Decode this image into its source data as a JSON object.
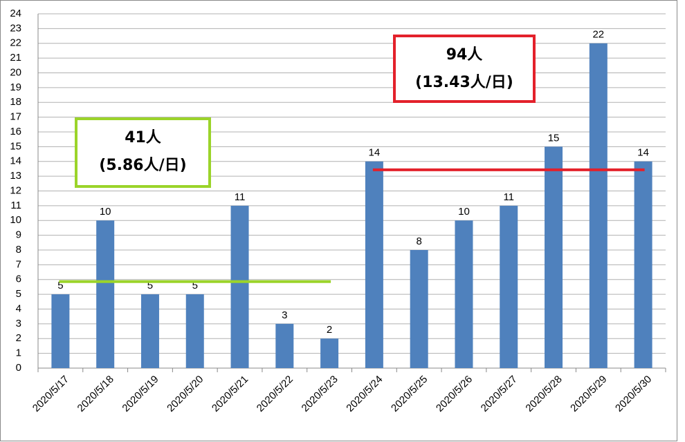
{
  "chart_data": {
    "type": "bar",
    "categories": [
      "2020/5/17",
      "2020/5/18",
      "2020/5/19",
      "2020/5/20",
      "2020/5/21",
      "2020/5/22",
      "2020/5/23",
      "2020/5/24",
      "2020/5/25",
      "2020/5/26",
      "2020/5/27",
      "2020/5/28",
      "2020/5/29",
      "2020/5/30"
    ],
    "values": [
      5,
      10,
      5,
      5,
      11,
      3,
      2,
      14,
      8,
      10,
      11,
      15,
      22,
      14
    ],
    "color": "#4f81bd",
    "ylim": [
      0,
      24
    ],
    "yticks": [
      0,
      1,
      2,
      3,
      4,
      5,
      6,
      7,
      8,
      9,
      10,
      11,
      12,
      13,
      14,
      15,
      16,
      17,
      18,
      19,
      20,
      21,
      22,
      23,
      24
    ],
    "grid": true,
    "averages": [
      {
        "value": 5.86,
        "from": "2020/5/17",
        "to": "2020/5/23",
        "color": "#9bd42a",
        "total": "41人",
        "label": "(5.86人/日)"
      },
      {
        "value": 13.43,
        "from": "2020/5/24",
        "to": "2020/5/30",
        "color": "#e3212b",
        "total": "94人",
        "label": "(13.43人/日)"
      }
    ]
  }
}
